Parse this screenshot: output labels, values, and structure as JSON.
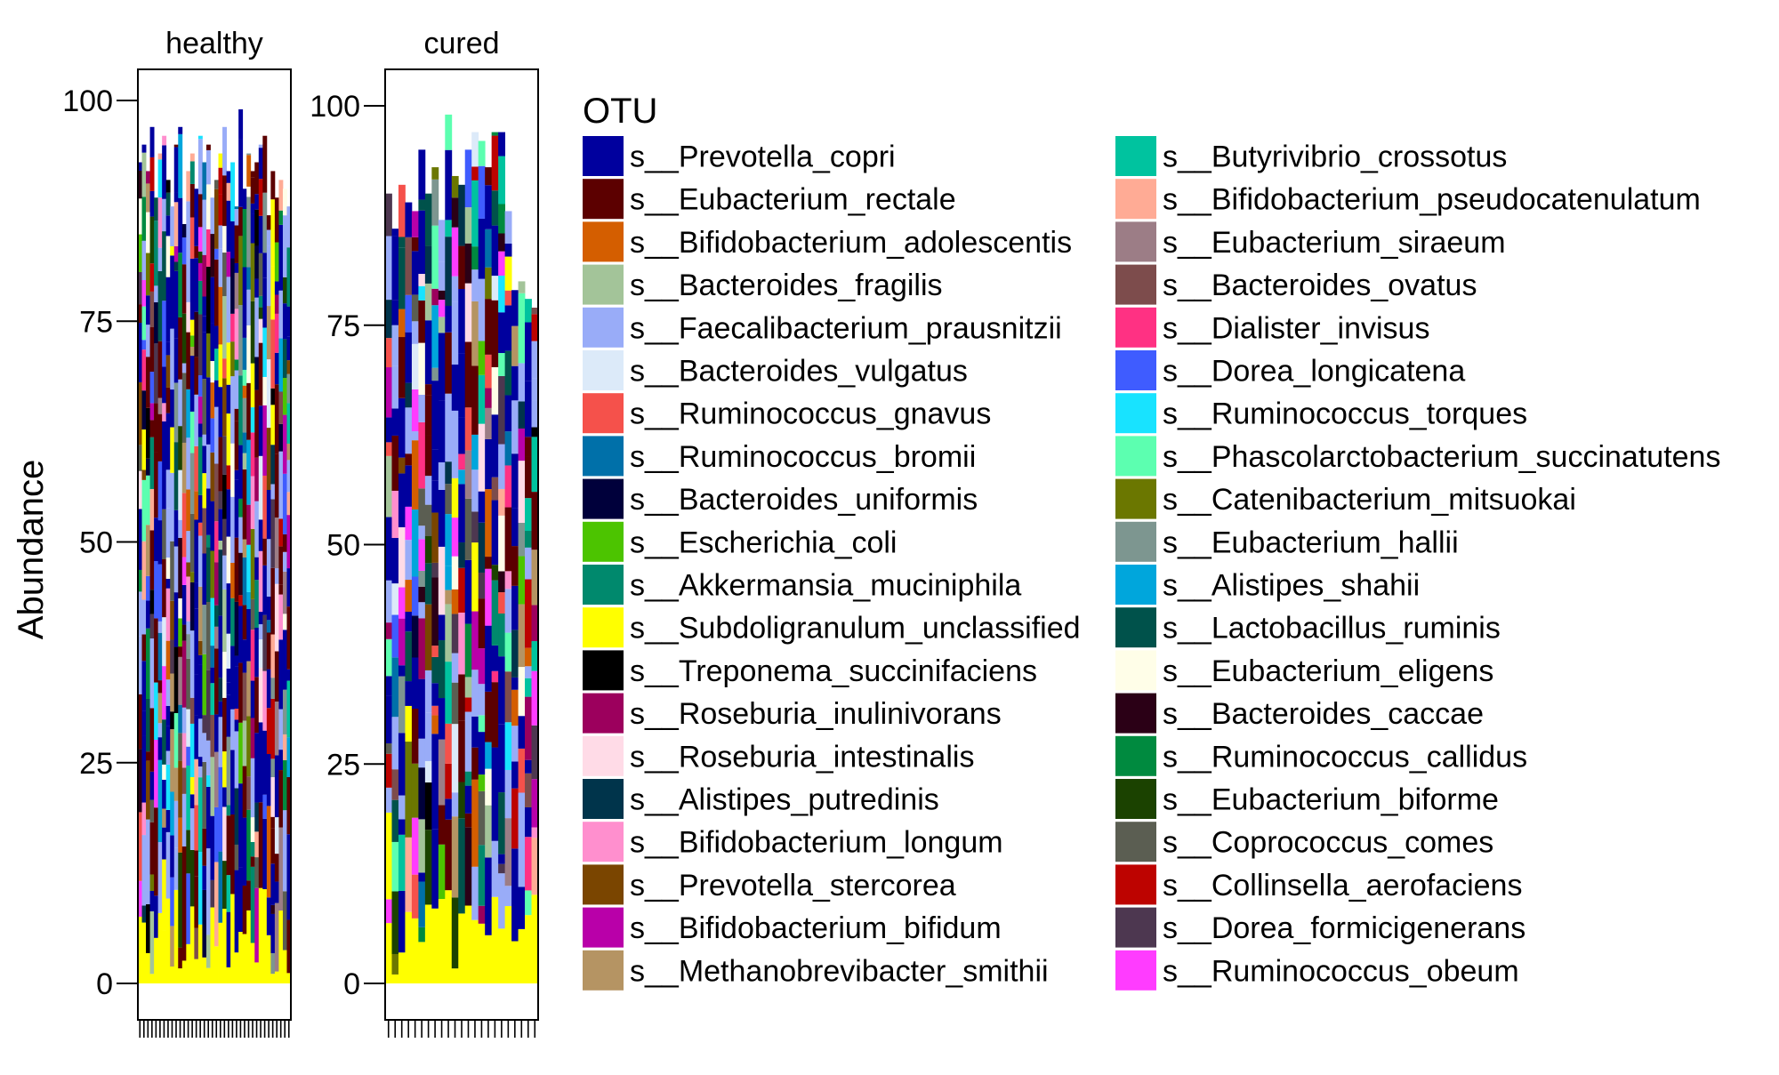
{
  "chart_data": {
    "type": "bar",
    "stacked": true,
    "ylabel": "Abundance",
    "ylim": [
      0,
      100
    ],
    "yticks": [
      "0",
      "25",
      "50",
      "75",
      "100"
    ],
    "facets": [
      {
        "label": "healthy",
        "n_samples": 38,
        "totals": [
          93,
          95,
          92,
          97,
          89,
          94,
          96,
          91,
          88,
          95,
          97,
          86,
          92,
          94,
          90,
          96,
          93,
          95,
          89,
          91,
          94,
          97,
          92,
          93,
          88,
          99,
          90,
          94,
          92,
          93,
          95,
          96,
          87,
          92,
          89,
          91,
          90,
          88
        ]
      },
      {
        "label": "cured",
        "n_samples": 23,
        "totals": [
          90,
          86,
          91,
          89,
          88,
          95,
          90,
          93,
          87,
          99,
          92,
          91,
          95,
          97,
          96,
          93,
          97,
          97,
          88,
          79,
          80,
          78,
          77
        ]
      }
    ],
    "series": [
      {
        "name": "s__Prevotella_copri",
        "color": "#00009e"
      },
      {
        "name": "s__Eubacterium_rectale",
        "color": "#5c0000"
      },
      {
        "name": "s__Bifidobacterium_adolescentis",
        "color": "#d45e00"
      },
      {
        "name": "s__Bacteroides_fragilis",
        "color": "#a3c499"
      },
      {
        "name": "s__Faecalibacterium_prausnitzii",
        "color": "#99acf8"
      },
      {
        "name": "s__Bacteroides_vulgatus",
        "color": "#dceaf9"
      },
      {
        "name": "s__Ruminococcus_gnavus",
        "color": "#f5514b"
      },
      {
        "name": "s__Ruminococcus_bromii",
        "color": "#0070a9"
      },
      {
        "name": "s__Bacteroides_uniformis",
        "color": "#00003b"
      },
      {
        "name": "s__Escherichia_coli",
        "color": "#4cc400"
      },
      {
        "name": "s__Akkermansia_muciniphila",
        "color": "#00896d"
      },
      {
        "name": "s__Subdoligranulum_unclassified",
        "color": "#ffff00"
      },
      {
        "name": "s__Treponema_succinifaciens",
        "color": "#000000"
      },
      {
        "name": "s__Roseburia_inulinivorans",
        "color": "#9c005d"
      },
      {
        "name": "s__Roseburia_intestinalis",
        "color": "#ffdbe7"
      },
      {
        "name": "s__Alistipes_putredinis",
        "color": "#00344b"
      },
      {
        "name": "s__Bifidobacterium_longum",
        "color": "#ff8fce"
      },
      {
        "name": "s__Prevotella_stercorea",
        "color": "#7a4500"
      },
      {
        "name": "s__Bifidobacterium_bifidum",
        "color": "#b900a9"
      },
      {
        "name": "s__Methanobrevibacter_smithii",
        "color": "#b59463"
      },
      {
        "name": "s__Butyrivibrio_crossotus",
        "color": "#00c39f"
      },
      {
        "name": "s__Bifidobacterium_pseudocatenulatum",
        "color": "#ffab95"
      },
      {
        "name": "s__Eubacterium_siraeum",
        "color": "#9c7d86"
      },
      {
        "name": "s__Bacteroides_ovatus",
        "color": "#7d4c4c"
      },
      {
        "name": "s__Dialister_invisus",
        "color": "#ff3183"
      },
      {
        "name": "s__Dorea_longicatena",
        "color": "#3f5cff"
      },
      {
        "name": "s__Ruminococcus_torques",
        "color": "#18e3ff"
      },
      {
        "name": "s__Phascolarctobacterium_succinatutens",
        "color": "#5cffb0"
      },
      {
        "name": "s__Catenibacterium_mitsuokai",
        "color": "#6b7700"
      },
      {
        "name": "s__Eubacterium_hallii",
        "color": "#7d9690"
      },
      {
        "name": "s__Alistipes_shahii",
        "color": "#00a6dc"
      },
      {
        "name": "s__Lactobacillus_ruminis",
        "color": "#00524b"
      },
      {
        "name": "s__Eubacterium_eligens",
        "color": "#fffee8"
      },
      {
        "name": "s__Bacteroides_caccae",
        "color": "#2b0016"
      },
      {
        "name": "s__Ruminococcus_callidus",
        "color": "#008a3f"
      },
      {
        "name": "s__Eubacterium_biforme",
        "color": "#1b4200"
      },
      {
        "name": "s__Coprococcus_comes",
        "color": "#5b5e52"
      },
      {
        "name": "s__Collinsella_aerofaciens",
        "color": "#bd0300"
      },
      {
        "name": "s__Dorea_formicigenerans",
        "color": "#4d3750"
      },
      {
        "name": "s__Ruminococcus_obeum",
        "color": "#ff3cff"
      }
    ],
    "legend": {
      "title": "OTU",
      "position": "right",
      "columns": 2
    }
  }
}
